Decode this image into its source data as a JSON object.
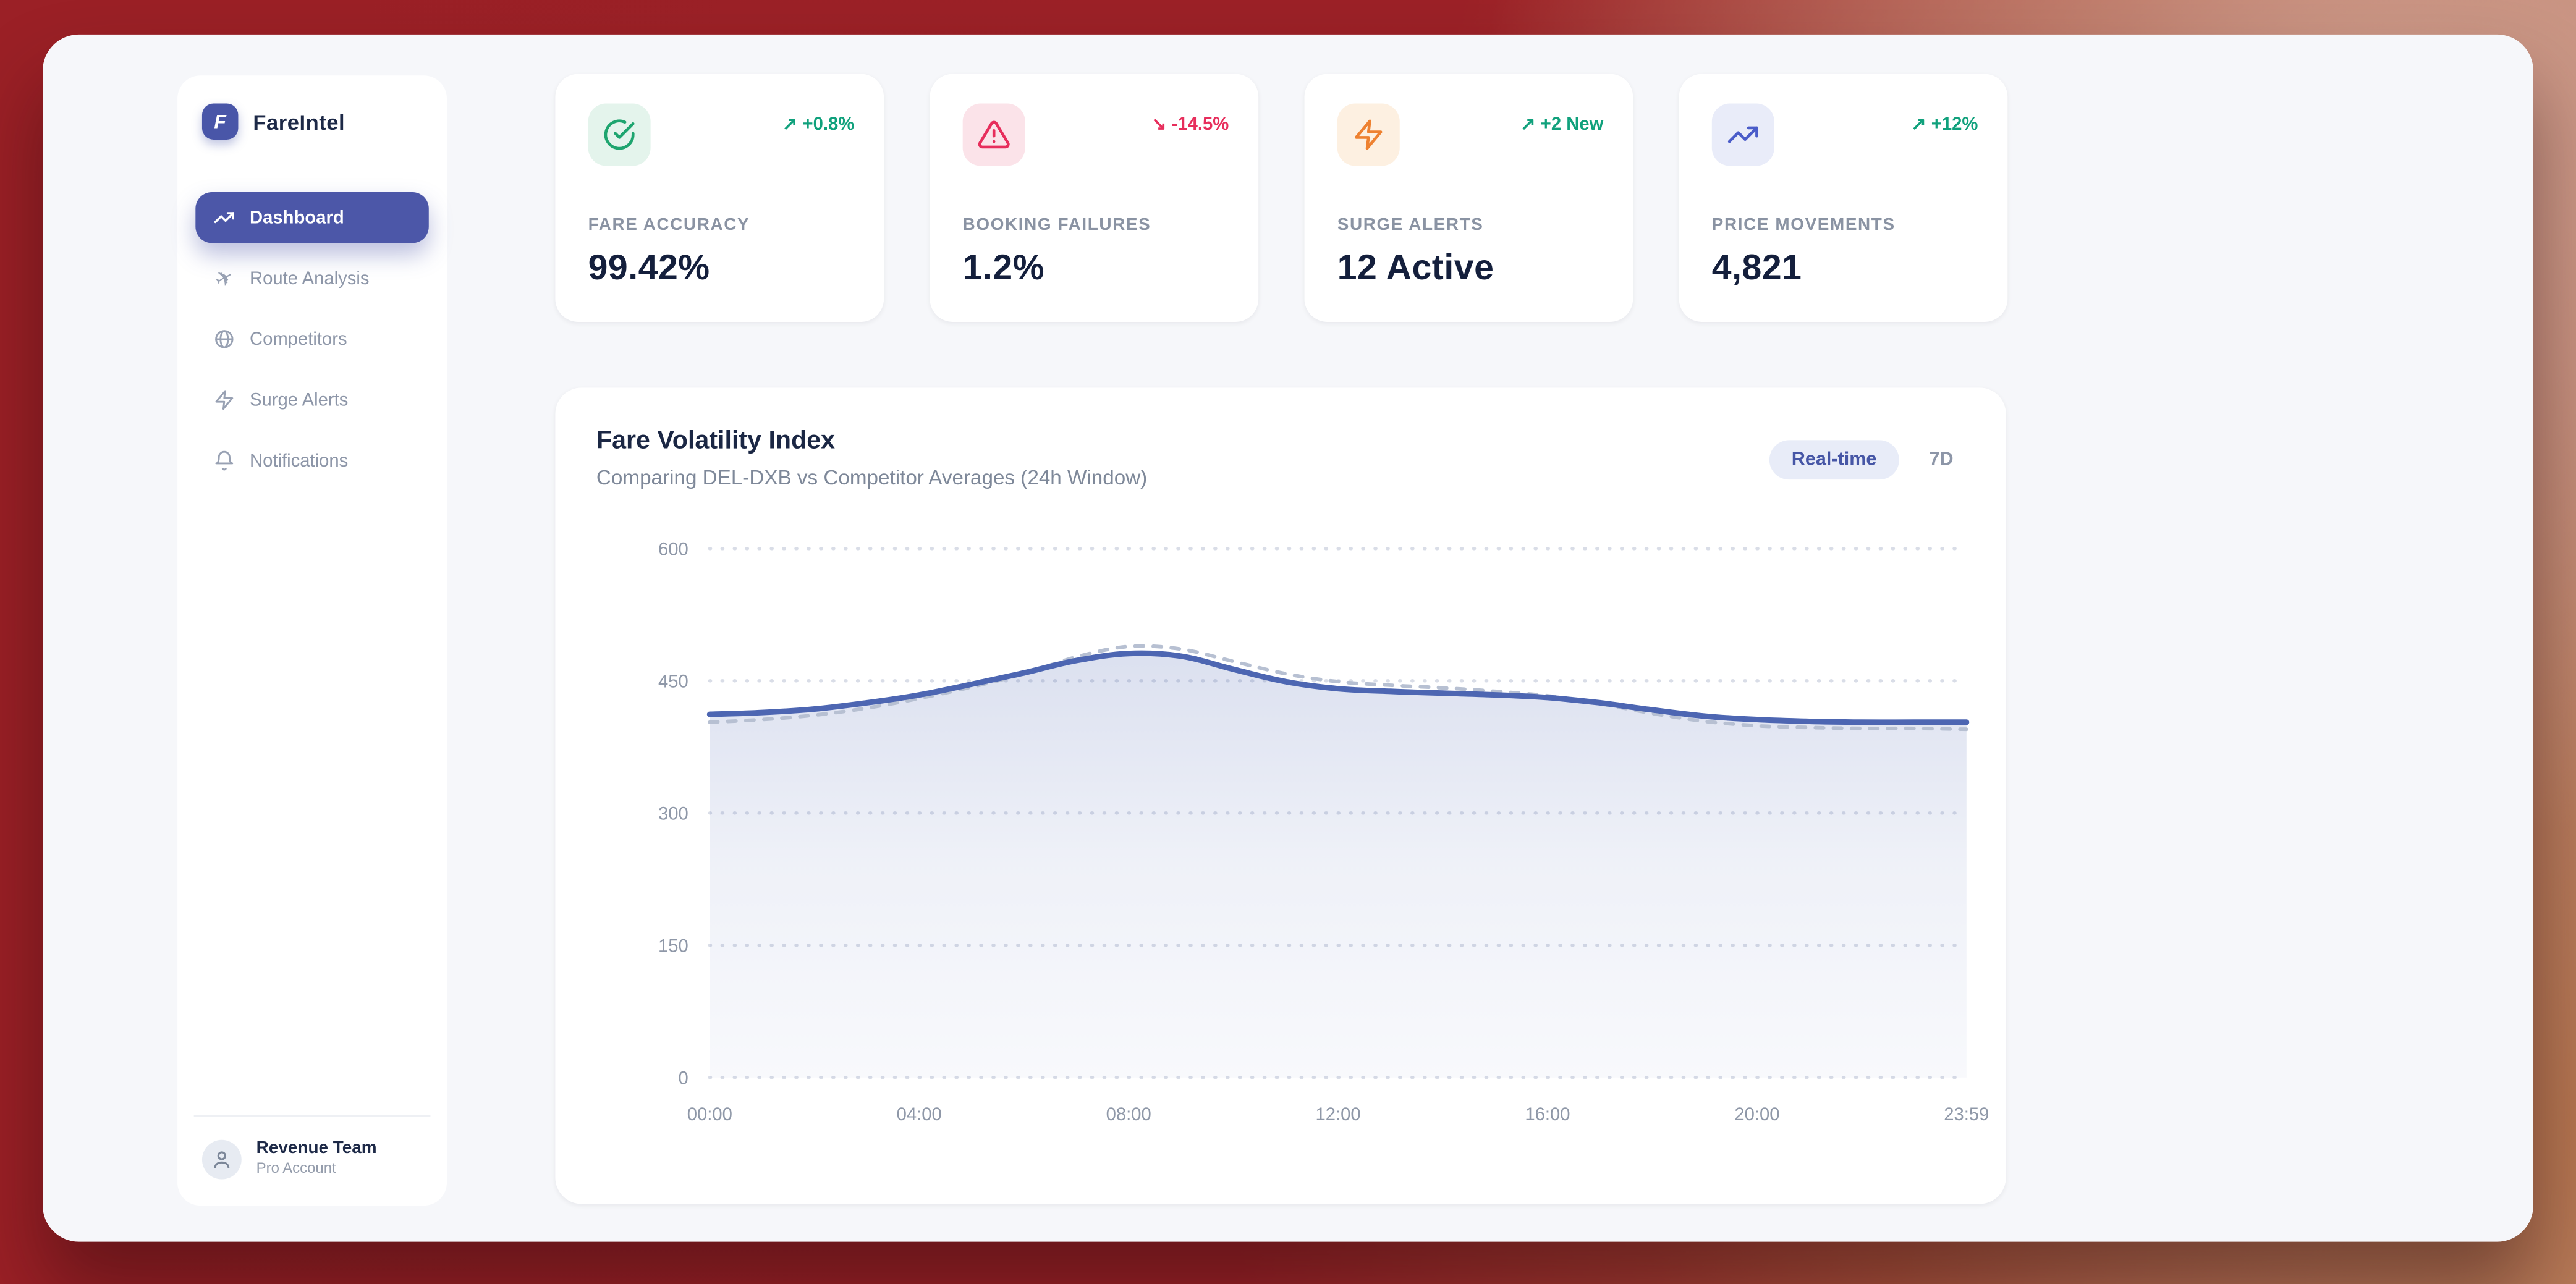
{
  "app": {
    "name": "FareIntel",
    "logo_letter": "F"
  },
  "sidebar": {
    "items": [
      {
        "label": "Dashboard",
        "icon": "trending-up-icon",
        "active": true
      },
      {
        "label": "Route Analysis",
        "icon": "plane-icon",
        "active": false
      },
      {
        "label": "Competitors",
        "icon": "globe-icon",
        "active": false
      },
      {
        "label": "Surge Alerts",
        "icon": "zap-icon",
        "active": false
      },
      {
        "label": "Notifications",
        "icon": "bell-icon",
        "active": false
      }
    ],
    "user": {
      "name": "Revenue Team",
      "plan": "Pro Account"
    }
  },
  "stats": [
    {
      "label": "FARE ACCURACY",
      "value": "99.42%",
      "arrow": "↗",
      "change": "+0.8%",
      "change_color": "#10a17c",
      "icon": "check-circle-icon",
      "icon_color": "#1ea56f",
      "icon_bg": "#e4f4ec"
    },
    {
      "label": "BOOKING FAILURES",
      "value": "1.2%",
      "arrow": "↘",
      "change": "-14.5%",
      "change_color": "#e72e5c",
      "icon": "alert-triangle-icon",
      "icon_color": "#e72e5c",
      "icon_bg": "#fbe3e9"
    },
    {
      "label": "SURGE ALERTS",
      "value": "12 Active",
      "arrow": "↗",
      "change": "+2 New",
      "change_color": "#10a17c",
      "icon": "zap-icon",
      "icon_color": "#ee8130",
      "icon_bg": "#fdf0e1"
    },
    {
      "label": "PRICE MOVEMENTS",
      "value": "4,821",
      "arrow": "↗",
      "change": "+12%",
      "change_color": "#10a17c",
      "icon": "trending-up-icon",
      "icon_color": "#4a5cc9",
      "icon_bg": "#e9ecf9"
    }
  ],
  "chart": {
    "title": "Fare Volatility Index",
    "subtitle": "Comparing DEL-DXB vs Competitor Averages (24h Window)",
    "controls": [
      {
        "label": "Real-time",
        "active": true
      },
      {
        "label": "7D",
        "active": false
      }
    ]
  },
  "chart_data": {
    "type": "line",
    "title": "Fare Volatility Index",
    "subtitle": "Comparing DEL-DXB vs Competitor Averages (24h Window)",
    "x_hours": [
      0,
      1,
      2,
      3,
      4,
      5,
      6,
      7,
      8,
      9,
      10,
      11,
      12,
      13,
      14,
      15,
      16,
      17,
      18,
      19,
      20,
      21,
      22,
      23,
      24
    ],
    "x_tick_positions": [
      0,
      4,
      8,
      12,
      16,
      20,
      24
    ],
    "x_tick_labels": [
      "00:00",
      "04:00",
      "08:00",
      "12:00",
      "16:00",
      "20:00",
      "23:59"
    ],
    "ylim": [
      0,
      600
    ],
    "yticks": [
      0,
      150,
      300,
      450,
      600
    ],
    "grid": "horizontal-dotted",
    "legend_position": "none",
    "series": [
      {
        "name": "DEL-DXB",
        "style": "solid",
        "color": "#4d66b2",
        "area_fill": true,
        "values": [
          412,
          414,
          418,
          425,
          434,
          446,
          459,
          473,
          481,
          478,
          463,
          449,
          441,
          438,
          436,
          434,
          431,
          425,
          417,
          410,
          406,
          404,
          403,
          403,
          403
        ]
      },
      {
        "name": "Competitor Average",
        "style": "dashed",
        "color": "#b7c0d2",
        "area_fill": false,
        "values": [
          403,
          406,
          411,
          419,
          430,
          443,
          458,
          477,
          489,
          486,
          472,
          458,
          449,
          445,
          442,
          438,
          433,
          424,
          413,
          404,
          399,
          397,
          396,
          396,
          395
        ]
      }
    ],
    "axis_label_color": "#8f98a8",
    "gridline_color": "#d9dde7"
  }
}
